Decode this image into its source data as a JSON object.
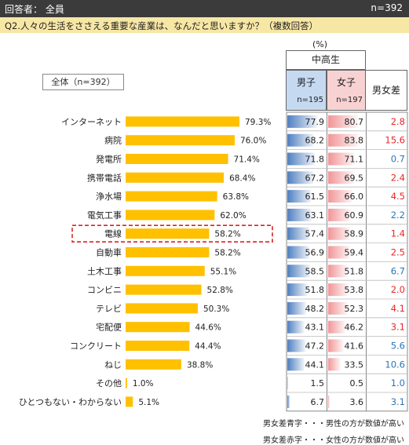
{
  "header": {
    "respondents": "回答者： 全員",
    "n_total": "n=392"
  },
  "question": "Q2.人々の生活をささえる重要な産業は、なんだと思いますか？（複数回答）",
  "units": "(%)",
  "group_label": "中高生",
  "total_label": "全体（n=392）",
  "columns": {
    "male": {
      "label": "男子",
      "n": "n=195"
    },
    "female": {
      "label": "女子",
      "n": "n=197"
    },
    "diff": {
      "label": "男女差"
    }
  },
  "legend": {
    "blue": "男女差青字・・・男性の方が数値が高い",
    "red": "男女差赤字・・・女性の方が数値が高い"
  },
  "colors": {
    "bar": "#ffc000",
    "male_bar": "#4f7fc0",
    "female_bar": "#f19597",
    "blue_text": "#2e75b6",
    "red_text": "#e8262a",
    "highlight_box": "#e02020",
    "header_male_bg": "#c5d9f1",
    "header_female_bg": "#f8d2d2"
  },
  "highlight_category": "電線",
  "chart_data": {
    "type": "bar",
    "orientation": "horizontal",
    "categories": [
      "インターネット",
      "病院",
      "発電所",
      "携帯電話",
      "浄水場",
      "電気工事",
      "電線",
      "自動車",
      "土木工事",
      "コンビニ",
      "テレビ",
      "宅配便",
      "コンクリート",
      "ねじ",
      "その他",
      "ひとつもない・わからない"
    ],
    "series": [
      {
        "name": "全体（n=392）",
        "values": [
          79.3,
          76.0,
          71.4,
          68.4,
          63.8,
          62.0,
          58.2,
          58.2,
          55.1,
          52.8,
          50.3,
          44.6,
          44.4,
          38.8,
          1.0,
          5.1
        ]
      },
      {
        "name": "男子",
        "values": [
          77.9,
          68.2,
          71.8,
          67.2,
          61.5,
          63.1,
          57.4,
          56.9,
          58.5,
          51.8,
          48.2,
          43.1,
          47.2,
          44.1,
          1.5,
          6.7
        ]
      },
      {
        "name": "女子",
        "values": [
          80.7,
          83.8,
          71.1,
          69.5,
          66.0,
          60.9,
          58.9,
          59.4,
          51.8,
          53.8,
          52.3,
          46.2,
          41.6,
          33.5,
          0.5,
          3.6
        ]
      }
    ],
    "diff": [
      {
        "value": "2.8",
        "sign": "female"
      },
      {
        "value": "15.6",
        "sign": "female"
      },
      {
        "value": "0.7",
        "sign": "male"
      },
      {
        "value": "2.4",
        "sign": "female"
      },
      {
        "value": "4.5",
        "sign": "female"
      },
      {
        "value": "2.2",
        "sign": "male"
      },
      {
        "value": "1.4",
        "sign": "female"
      },
      {
        "value": "2.5",
        "sign": "female"
      },
      {
        "value": "6.7",
        "sign": "male"
      },
      {
        "value": "2.0",
        "sign": "female"
      },
      {
        "value": "4.1",
        "sign": "female"
      },
      {
        "value": "3.1",
        "sign": "female"
      },
      {
        "value": "5.6",
        "sign": "male"
      },
      {
        "value": "10.6",
        "sign": "male"
      },
      {
        "value": "1.0",
        "sign": "male"
      },
      {
        "value": "3.1",
        "sign": "male"
      }
    ],
    "value_format": "0.0%",
    "xlim": [
      0,
      100
    ]
  }
}
